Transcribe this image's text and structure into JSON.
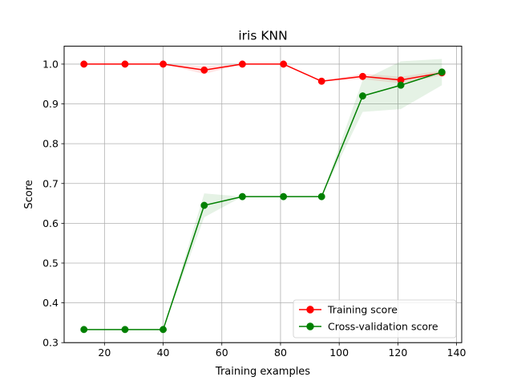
{
  "chart_data": {
    "type": "line",
    "title": "iris KNN",
    "xlabel": "Training examples",
    "ylabel": "Score",
    "xlim": [
      6.25,
      141.75
    ],
    "ylim": [
      0.3,
      1.045
    ],
    "xticks": [
      20,
      40,
      60,
      80,
      100,
      120,
      140
    ],
    "yticks": [
      0.3,
      0.4,
      0.5,
      0.6,
      0.7,
      0.8,
      0.9,
      1.0
    ],
    "xtick_labels": [
      "20",
      "40",
      "60",
      "80",
      "100",
      "120",
      "140"
    ],
    "ytick_labels": [
      "0.3",
      "0.4",
      "0.5",
      "0.6",
      "0.7",
      "0.8",
      "0.9",
      "1.0"
    ],
    "grid": true,
    "legend_position": "lower-right",
    "x": [
      13,
      27,
      40,
      54,
      67,
      81,
      94,
      108,
      121,
      135
    ],
    "series": [
      {
        "name": "Training score",
        "color": "#ff0000",
        "band_color": "#ff0000",
        "values": [
          1.0,
          1.0,
          1.0,
          0.985,
          1.0,
          1.0,
          0.957,
          0.969,
          0.96,
          0.978
        ],
        "lower": [
          1.0,
          1.0,
          1.0,
          0.975,
          1.0,
          1.0,
          0.957,
          0.962,
          0.952,
          0.972
        ],
        "upper": [
          1.0,
          1.0,
          1.0,
          0.995,
          1.0,
          1.0,
          0.957,
          0.976,
          0.968,
          0.984
        ]
      },
      {
        "name": "Cross-validation score",
        "color": "#008000",
        "band_color": "#008000",
        "values": [
          0.333,
          0.333,
          0.333,
          0.645,
          0.667,
          0.667,
          0.667,
          0.92,
          0.947,
          0.98
        ],
        "lower": [
          0.333,
          0.333,
          0.333,
          0.615,
          0.667,
          0.667,
          0.667,
          0.88,
          0.887,
          0.947
        ],
        "upper": [
          0.333,
          0.333,
          0.333,
          0.675,
          0.667,
          0.667,
          0.667,
          0.96,
          1.007,
          1.013
        ]
      }
    ]
  }
}
